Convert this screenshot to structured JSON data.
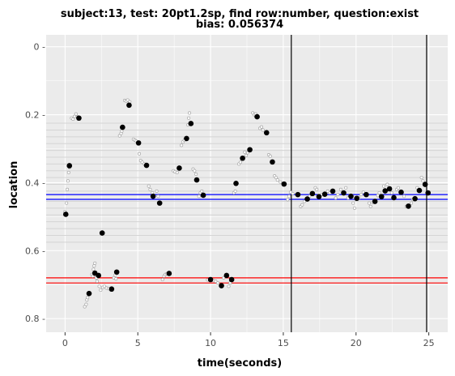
{
  "chart_data": {
    "type": "scatter",
    "title_line1": "subject:13, test: 20pt1.2sp, find row:number, question:exist",
    "title_line2": "bias: 0.056374",
    "xlabel": "time(seconds)",
    "ylabel": "location",
    "xlim": [
      -1.3,
      26.3
    ],
    "ylim": [
      0.84,
      -0.035
    ],
    "y_inverted": true,
    "grid": true,
    "x_ticks": [
      0,
      5,
      10,
      15,
      20,
      25
    ],
    "x_tick_labels": [
      "0",
      "5",
      "10",
      "15",
      "20",
      "25"
    ],
    "y_ticks": [
      0,
      0.2,
      0.4,
      0.6,
      0.8
    ],
    "y_tick_labels": [
      "0 -",
      "0.2 -",
      "0.4 -",
      "0.6 -",
      "0.8 -"
    ],
    "row_lines": [
      0.225,
      0.245,
      0.265,
      0.285,
      0.305,
      0.325,
      0.345,
      0.365,
      0.385,
      0.405,
      0.425,
      0.455,
      0.475,
      0.495,
      0.515,
      0.535,
      0.555,
      0.575
    ],
    "row_line_color": "#d4d4d4",
    "blue_lines": [
      0.435,
      0.449
    ],
    "blue_color": "#0000ff",
    "red_lines": [
      0.68,
      0.695
    ],
    "red_color": "#ff0000",
    "vertical_lines": [
      15.55,
      24.85
    ],
    "vertical_color": "#000000",
    "fixations": [
      {
        "x": 0.05,
        "y": 0.493
      },
      {
        "x": 0.3,
        "y": 0.35
      },
      {
        "x": 0.95,
        "y": 0.21
      },
      {
        "x": 1.65,
        "y": 0.726
      },
      {
        "x": 2.05,
        "y": 0.666
      },
      {
        "x": 2.3,
        "y": 0.673
      },
      {
        "x": 2.55,
        "y": 0.548
      },
      {
        "x": 3.2,
        "y": 0.713
      },
      {
        "x": 3.55,
        "y": 0.663
      },
      {
        "x": 3.95,
        "y": 0.237
      },
      {
        "x": 4.4,
        "y": 0.172
      },
      {
        "x": 5.05,
        "y": 0.283
      },
      {
        "x": 5.6,
        "y": 0.349
      },
      {
        "x": 6.05,
        "y": 0.44
      },
      {
        "x": 6.5,
        "y": 0.46
      },
      {
        "x": 7.15,
        "y": 0.667
      },
      {
        "x": 7.85,
        "y": 0.357
      },
      {
        "x": 8.35,
        "y": 0.27
      },
      {
        "x": 8.65,
        "y": 0.226
      },
      {
        "x": 9.05,
        "y": 0.392
      },
      {
        "x": 9.5,
        "y": 0.437
      },
      {
        "x": 10.0,
        "y": 0.685
      },
      {
        "x": 10.75,
        "y": 0.703
      },
      {
        "x": 11.1,
        "y": 0.673
      },
      {
        "x": 11.45,
        "y": 0.685
      },
      {
        "x": 11.75,
        "y": 0.402
      },
      {
        "x": 12.2,
        "y": 0.328
      },
      {
        "x": 12.7,
        "y": 0.303
      },
      {
        "x": 13.2,
        "y": 0.206
      },
      {
        "x": 13.85,
        "y": 0.253
      },
      {
        "x": 14.25,
        "y": 0.339
      },
      {
        "x": 15.05,
        "y": 0.404
      },
      {
        "x": 16.0,
        "y": 0.435
      },
      {
        "x": 16.65,
        "y": 0.448
      },
      {
        "x": 17.0,
        "y": 0.432
      },
      {
        "x": 17.45,
        "y": 0.441
      },
      {
        "x": 17.85,
        "y": 0.434
      },
      {
        "x": 18.4,
        "y": 0.425
      },
      {
        "x": 19.15,
        "y": 0.43
      },
      {
        "x": 19.65,
        "y": 0.44
      },
      {
        "x": 20.05,
        "y": 0.446
      },
      {
        "x": 20.7,
        "y": 0.435
      },
      {
        "x": 21.3,
        "y": 0.455
      },
      {
        "x": 21.75,
        "y": 0.441
      },
      {
        "x": 22.0,
        "y": 0.424
      },
      {
        "x": 22.3,
        "y": 0.418
      },
      {
        "x": 22.6,
        "y": 0.444
      },
      {
        "x": 23.1,
        "y": 0.428
      },
      {
        "x": 23.6,
        "y": 0.469
      },
      {
        "x": 24.05,
        "y": 0.447
      },
      {
        "x": 24.35,
        "y": 0.423
      },
      {
        "x": 24.75,
        "y": 0.405
      },
      {
        "x": 24.95,
        "y": 0.43
      }
    ],
    "raw_samples": [
      {
        "x": 0.0,
        "y": 0.485
      },
      {
        "x": 0.1,
        "y": 0.46
      },
      {
        "x": 0.15,
        "y": 0.42
      },
      {
        "x": 0.2,
        "y": 0.395
      },
      {
        "x": 0.25,
        "y": 0.37
      },
      {
        "x": 0.3,
        "y": 0.355
      },
      {
        "x": 0.45,
        "y": 0.21
      },
      {
        "x": 0.55,
        "y": 0.213
      },
      {
        "x": 0.65,
        "y": 0.205
      },
      {
        "x": 0.75,
        "y": 0.198
      },
      {
        "x": 0.85,
        "y": 0.206
      },
      {
        "x": 1.35,
        "y": 0.765
      },
      {
        "x": 1.45,
        "y": 0.758
      },
      {
        "x": 1.5,
        "y": 0.745
      },
      {
        "x": 1.55,
        "y": 0.738
      },
      {
        "x": 1.85,
        "y": 0.67
      },
      {
        "x": 1.9,
        "y": 0.675
      },
      {
        "x": 1.95,
        "y": 0.655
      },
      {
        "x": 2.0,
        "y": 0.645
      },
      {
        "x": 2.05,
        "y": 0.637
      },
      {
        "x": 2.15,
        "y": 0.68
      },
      {
        "x": 2.2,
        "y": 0.69
      },
      {
        "x": 2.35,
        "y": 0.705
      },
      {
        "x": 2.45,
        "y": 0.716
      },
      {
        "x": 2.6,
        "y": 0.708
      },
      {
        "x": 2.7,
        "y": 0.705
      },
      {
        "x": 2.85,
        "y": 0.71
      },
      {
        "x": 3.0,
        "y": 0.712
      },
      {
        "x": 3.35,
        "y": 0.68
      },
      {
        "x": 3.45,
        "y": 0.672
      },
      {
        "x": 3.5,
        "y": 0.683
      },
      {
        "x": 3.75,
        "y": 0.262
      },
      {
        "x": 3.85,
        "y": 0.255
      },
      {
        "x": 3.9,
        "y": 0.248
      },
      {
        "x": 4.1,
        "y": 0.158
      },
      {
        "x": 4.2,
        "y": 0.16
      },
      {
        "x": 4.3,
        "y": 0.157
      },
      {
        "x": 4.45,
        "y": 0.162
      },
      {
        "x": 4.7,
        "y": 0.272
      },
      {
        "x": 4.8,
        "y": 0.275
      },
      {
        "x": 4.9,
        "y": 0.278
      },
      {
        "x": 5.1,
        "y": 0.315
      },
      {
        "x": 5.2,
        "y": 0.335
      },
      {
        "x": 5.3,
        "y": 0.34
      },
      {
        "x": 5.45,
        "y": 0.345
      },
      {
        "x": 5.75,
        "y": 0.41
      },
      {
        "x": 5.85,
        "y": 0.42
      },
      {
        "x": 6.0,
        "y": 0.43
      },
      {
        "x": 6.3,
        "y": 0.425
      },
      {
        "x": 6.4,
        "y": 0.44
      },
      {
        "x": 6.7,
        "y": 0.685
      },
      {
        "x": 6.8,
        "y": 0.675
      },
      {
        "x": 6.9,
        "y": 0.67
      },
      {
        "x": 7.0,
        "y": 0.668
      },
      {
        "x": 7.45,
        "y": 0.365
      },
      {
        "x": 7.55,
        "y": 0.368
      },
      {
        "x": 7.7,
        "y": 0.37
      },
      {
        "x": 8.0,
        "y": 0.29
      },
      {
        "x": 8.1,
        "y": 0.28
      },
      {
        "x": 8.2,
        "y": 0.275
      },
      {
        "x": 8.45,
        "y": 0.23
      },
      {
        "x": 8.5,
        "y": 0.21
      },
      {
        "x": 8.55,
        "y": 0.195
      },
      {
        "x": 8.8,
        "y": 0.36
      },
      {
        "x": 8.9,
        "y": 0.365
      },
      {
        "x": 9.0,
        "y": 0.375
      },
      {
        "x": 9.2,
        "y": 0.44
      },
      {
        "x": 9.3,
        "y": 0.43
      },
      {
        "x": 9.4,
        "y": 0.425
      },
      {
        "x": 9.8,
        "y": 0.686
      },
      {
        "x": 10.2,
        "y": 0.688
      },
      {
        "x": 10.35,
        "y": 0.69
      },
      {
        "x": 10.5,
        "y": 0.695
      },
      {
        "x": 10.9,
        "y": 0.68
      },
      {
        "x": 11.25,
        "y": 0.705
      },
      {
        "x": 11.35,
        "y": 0.695
      },
      {
        "x": 11.6,
        "y": 0.43
      },
      {
        "x": 11.7,
        "y": 0.425
      },
      {
        "x": 11.95,
        "y": 0.345
      },
      {
        "x": 12.05,
        "y": 0.34
      },
      {
        "x": 12.35,
        "y": 0.31
      },
      {
        "x": 12.45,
        "y": 0.32
      },
      {
        "x": 12.55,
        "y": 0.312
      },
      {
        "x": 12.9,
        "y": 0.195
      },
      {
        "x": 13.0,
        "y": 0.2
      },
      {
        "x": 13.1,
        "y": 0.198
      },
      {
        "x": 13.4,
        "y": 0.24
      },
      {
        "x": 13.5,
        "y": 0.236
      },
      {
        "x": 13.6,
        "y": 0.245
      },
      {
        "x": 14.0,
        "y": 0.318
      },
      {
        "x": 14.1,
        "y": 0.322
      },
      {
        "x": 14.4,
        "y": 0.38
      },
      {
        "x": 14.5,
        "y": 0.385
      },
      {
        "x": 14.6,
        "y": 0.392
      },
      {
        "x": 14.8,
        "y": 0.398
      },
      {
        "x": 15.3,
        "y": 0.45
      },
      {
        "x": 15.4,
        "y": 0.44
      },
      {
        "x": 15.5,
        "y": 0.428
      },
      {
        "x": 15.65,
        "y": 0.432
      },
      {
        "x": 16.2,
        "y": 0.47
      },
      {
        "x": 16.3,
        "y": 0.465
      },
      {
        "x": 16.45,
        "y": 0.455
      },
      {
        "x": 16.8,
        "y": 0.44
      },
      {
        "x": 17.2,
        "y": 0.415
      },
      {
        "x": 17.3,
        "y": 0.42
      },
      {
        "x": 17.65,
        "y": 0.435
      },
      {
        "x": 18.05,
        "y": 0.425
      },
      {
        "x": 18.2,
        "y": 0.43
      },
      {
        "x": 18.6,
        "y": 0.445
      },
      {
        "x": 18.75,
        "y": 0.435
      },
      {
        "x": 18.95,
        "y": 0.42
      },
      {
        "x": 19.3,
        "y": 0.415
      },
      {
        "x": 19.45,
        "y": 0.445
      },
      {
        "x": 19.8,
        "y": 0.46
      },
      {
        "x": 19.9,
        "y": 0.475
      },
      {
        "x": 20.2,
        "y": 0.445
      },
      {
        "x": 20.35,
        "y": 0.435
      },
      {
        "x": 20.5,
        "y": 0.428
      },
      {
        "x": 20.9,
        "y": 0.46
      },
      {
        "x": 21.0,
        "y": 0.47
      },
      {
        "x": 21.15,
        "y": 0.458
      },
      {
        "x": 21.5,
        "y": 0.438
      },
      {
        "x": 21.6,
        "y": 0.43
      },
      {
        "x": 21.9,
        "y": 0.41
      },
      {
        "x": 22.15,
        "y": 0.405
      },
      {
        "x": 22.45,
        "y": 0.43
      },
      {
        "x": 22.8,
        "y": 0.42
      },
      {
        "x": 22.9,
        "y": 0.415
      },
      {
        "x": 23.3,
        "y": 0.44
      },
      {
        "x": 23.45,
        "y": 0.47
      },
      {
        "x": 23.8,
        "y": 0.46
      },
      {
        "x": 23.9,
        "y": 0.45
      },
      {
        "x": 24.2,
        "y": 0.415
      },
      {
        "x": 24.5,
        "y": 0.385
      },
      {
        "x": 24.6,
        "y": 0.395
      }
    ]
  }
}
